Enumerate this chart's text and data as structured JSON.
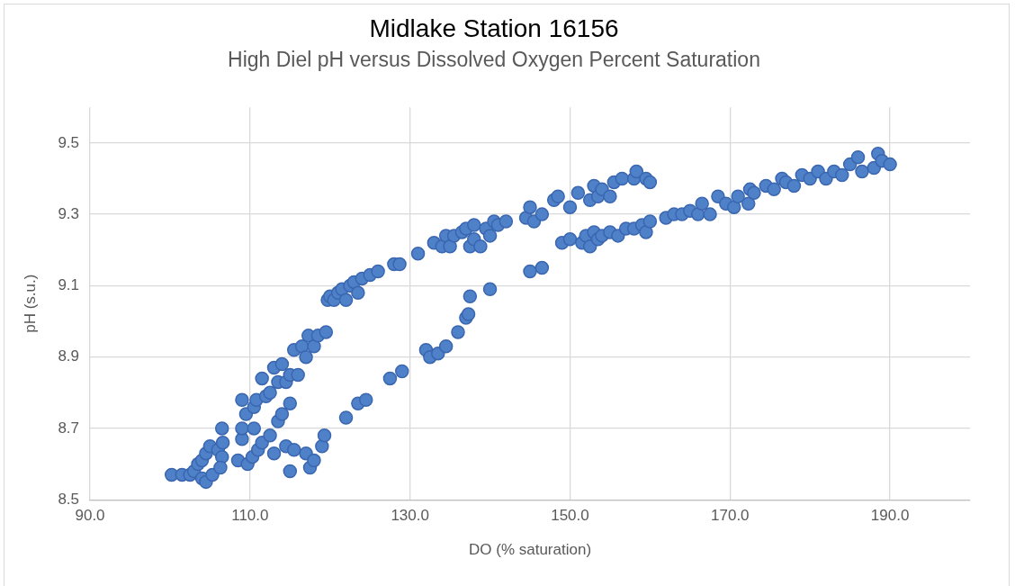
{
  "chart_data": {
    "type": "scatter",
    "title": "Midlake Station 16156",
    "subtitle": "High Diel pH versus Dissolved Oxygen Percent Saturation",
    "xlabel": "DO (% saturation)",
    "ylabel": "pH (s.u.)",
    "xlim": [
      90,
      200
    ],
    "xticks": [
      {
        "value": 90,
        "label": "90.0"
      },
      {
        "value": 110,
        "label": "110.0"
      },
      {
        "value": 130,
        "label": "130.0"
      },
      {
        "value": 150,
        "label": "150.0"
      },
      {
        "value": 170,
        "label": "170.0"
      },
      {
        "value": 190,
        "label": "190.0"
      }
    ],
    "ylim": [
      8.5,
      9.6
    ],
    "yticks": [
      8.5,
      8.7,
      8.9,
      9.1,
      9.3,
      9.5
    ],
    "grid": true,
    "legend": false,
    "marker": "circle",
    "series": [
      {
        "color": "#4f81c9",
        "x": [
          100.2,
          101.5,
          102.5,
          103,
          103.5,
          104,
          104.5,
          105,
          104,
          104.5,
          105.3,
          106,
          106.5,
          106.6,
          106.5,
          106.3,
          108.5,
          109,
          109,
          109,
          109.5,
          109.7,
          110.3,
          110.5,
          110.5,
          110.8,
          111,
          111.5,
          111.5,
          112,
          112.5,
          112.5,
          113,
          113,
          113.5,
          113.5,
          114,
          114,
          114.5,
          114.5,
          115,
          115,
          115,
          115.5,
          115.5,
          116,
          116.5,
          117,
          117,
          117.3,
          117.5,
          118,
          118,
          118.5,
          119,
          119.3,
          119.5,
          119.7,
          120,
          120.5,
          121,
          121.5,
          122,
          122.5,
          123,
          123.5,
          124,
          125,
          126,
          128,
          128.7,
          131,
          133,
          134,
          134.5,
          135,
          135.5,
          136.5,
          137,
          137.5,
          138,
          138,
          138.8,
          139.5,
          140,
          140.5,
          141,
          142,
          144.5,
          145,
          145.5,
          146.5,
          148,
          148.5,
          150,
          151,
          152.5,
          153,
          153.5,
          154,
          155,
          155.5,
          156.5,
          158,
          158.3,
          159.5,
          160,
          122,
          123.5,
          124.5,
          127.5,
          129,
          132,
          132.5,
          133.5,
          134.5,
          136,
          137,
          137.3,
          137.5,
          140,
          145,
          146.5,
          149,
          150,
          151.5,
          152,
          152.5,
          153,
          153.5,
          154,
          155,
          156,
          157,
          158,
          159,
          159.5,
          160,
          162,
          163,
          164,
          165,
          166,
          166.5,
          167.5,
          168.5,
          169.5,
          170.5,
          171,
          172.3,
          172.5,
          173,
          174.5,
          175.5,
          176.5,
          177,
          178,
          179,
          180,
          181,
          182,
          183,
          184,
          185,
          186,
          186.5,
          188,
          188.5,
          189,
          190
        ],
        "values": [
          8.57,
          8.57,
          8.57,
          8.58,
          8.6,
          8.61,
          8.63,
          8.65,
          8.56,
          8.55,
          8.57,
          8.64,
          8.7,
          8.66,
          8.62,
          8.59,
          8.61,
          8.67,
          8.7,
          8.78,
          8.74,
          8.6,
          8.62,
          8.7,
          8.76,
          8.78,
          8.64,
          8.66,
          8.84,
          8.79,
          8.68,
          8.8,
          8.63,
          8.87,
          8.72,
          8.83,
          8.74,
          8.88,
          8.83,
          8.65,
          8.58,
          8.77,
          8.85,
          8.64,
          8.92,
          8.85,
          8.93,
          8.9,
          8.63,
          8.96,
          8.59,
          8.93,
          8.61,
          8.96,
          8.65,
          8.68,
          8.97,
          9.06,
          9.07,
          9.06,
          9.08,
          9.09,
          9.06,
          9.1,
          9.11,
          9.08,
          9.12,
          9.13,
          9.14,
          9.16,
          9.16,
          9.19,
          9.22,
          9.21,
          9.24,
          9.21,
          9.24,
          9.25,
          9.26,
          9.21,
          9.27,
          9.23,
          9.21,
          9.26,
          9.24,
          9.28,
          9.27,
          9.28,
          9.29,
          9.32,
          9.28,
          9.3,
          9.34,
          9.35,
          9.32,
          9.36,
          9.34,
          9.38,
          9.35,
          9.37,
          9.35,
          9.39,
          9.4,
          9.4,
          9.42,
          9.4,
          9.39,
          8.73,
          8.77,
          8.78,
          8.84,
          8.86,
          8.92,
          8.9,
          8.91,
          8.93,
          8.97,
          9.01,
          9.02,
          9.07,
          9.09,
          9.14,
          9.15,
          9.22,
          9.23,
          9.22,
          9.24,
          9.21,
          9.25,
          9.23,
          9.24,
          9.25,
          9.24,
          9.26,
          9.26,
          9.27,
          9.25,
          9.28,
          9.29,
          9.3,
          9.3,
          9.31,
          9.3,
          9.33,
          9.3,
          9.35,
          9.33,
          9.32,
          9.35,
          9.33,
          9.37,
          9.36,
          9.38,
          9.37,
          9.4,
          9.39,
          9.38,
          9.41,
          9.4,
          9.42,
          9.4,
          9.42,
          9.41,
          9.44,
          9.46,
          9.42,
          9.43,
          9.47,
          9.45,
          9.44
        ]
      }
    ]
  }
}
